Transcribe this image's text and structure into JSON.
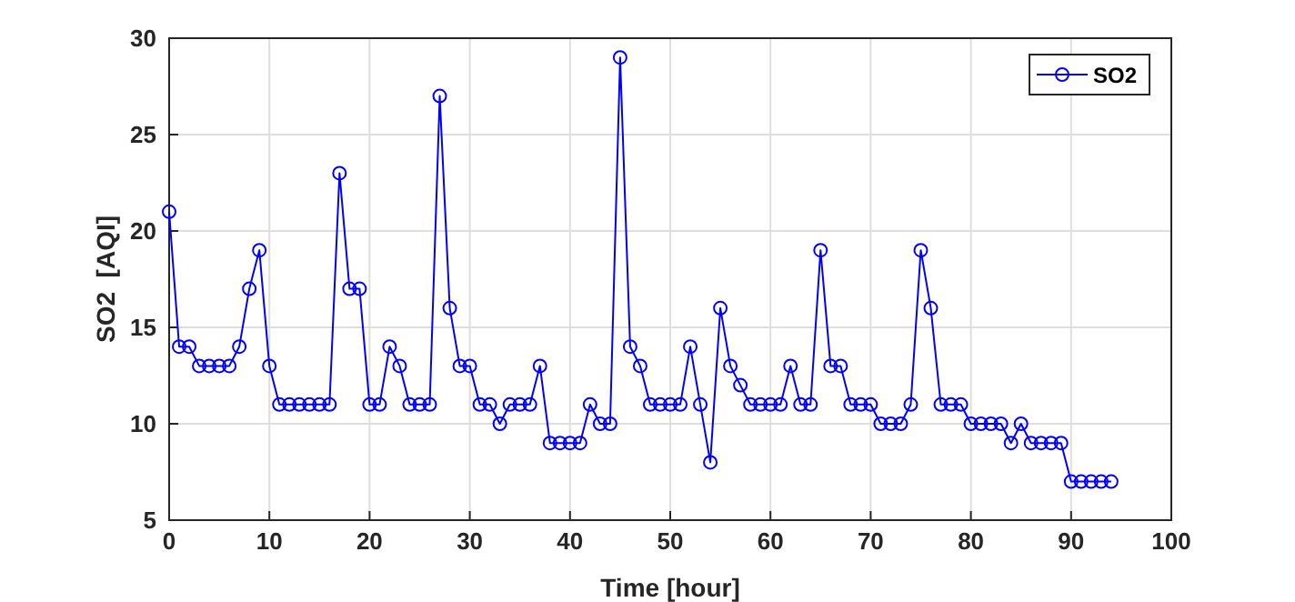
{
  "chart_data": {
    "type": "line",
    "xlabel": "Time [hour]",
    "ylabel": "SO2  [AQI]",
    "x": [
      0,
      1,
      2,
      3,
      4,
      5,
      6,
      7,
      8,
      9,
      10,
      11,
      12,
      13,
      14,
      15,
      16,
      17,
      18,
      19,
      20,
      21,
      22,
      23,
      24,
      25,
      26,
      27,
      28,
      29,
      30,
      31,
      32,
      33,
      34,
      35,
      36,
      37,
      38,
      39,
      40,
      41,
      42,
      43,
      44,
      45,
      46,
      47,
      48,
      49,
      50,
      51,
      52,
      53,
      54,
      55,
      56,
      57,
      58,
      59,
      60,
      61,
      62,
      63,
      64,
      65,
      66,
      67,
      68,
      69,
      70,
      71,
      72,
      73,
      74,
      75,
      76,
      77,
      78,
      79,
      80,
      81,
      82,
      83,
      84,
      85,
      86,
      87,
      88,
      89,
      90,
      91,
      92,
      93,
      94
    ],
    "series": [
      {
        "name": "SO2",
        "color": "#0000ff",
        "values": [
          21,
          14,
          14,
          13,
          13,
          13,
          13,
          14,
          17,
          19,
          13,
          11,
          11,
          11,
          11,
          11,
          11,
          23,
          17,
          17,
          11,
          11,
          14,
          13,
          11,
          11,
          11,
          27,
          16,
          13,
          13,
          11,
          11,
          10,
          11,
          11,
          11,
          13,
          9,
          9,
          9,
          9,
          11,
          10,
          10,
          29,
          14,
          13,
          11,
          11,
          11,
          11,
          14,
          11,
          8,
          16,
          13,
          12,
          11,
          11,
          11,
          11,
          13,
          11,
          11,
          19,
          13,
          13,
          11,
          11,
          11,
          10,
          10,
          10,
          11,
          19,
          16,
          11,
          11,
          11,
          10,
          10,
          10,
          10,
          9,
          10,
          9,
          9,
          9,
          9,
          7,
          7,
          7,
          7,
          7
        ]
      }
    ],
    "xlim": [
      0,
      100
    ],
    "xticks": [
      0,
      10,
      20,
      30,
      40,
      50,
      60,
      70,
      80,
      90,
      100
    ],
    "ylim": [
      5,
      30
    ],
    "yticks": [
      5,
      10,
      15,
      20,
      25,
      30
    ],
    "grid": true,
    "legend": "top right",
    "marker": "circle",
    "line_style": "solid"
  }
}
